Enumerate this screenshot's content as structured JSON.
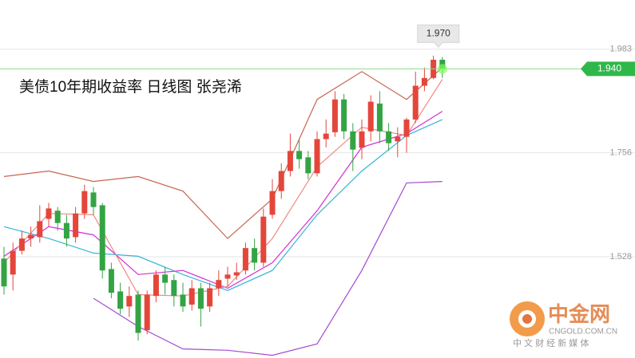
{
  "chart_data": {
    "type": "candlestick",
    "title": "美债10年期收益率  日线图  张尧浠",
    "ylim": [
      1.306,
      2.091
    ],
    "yticks": [
      1.528,
      1.756,
      1.983
    ],
    "grid": true,
    "up_color": "#e4463a",
    "down_color": "#33a444",
    "candles": {
      "open": [
        1.524,
        1.489,
        1.541,
        1.568,
        1.571,
        1.611,
        1.629,
        1.602,
        1.571,
        1.623,
        1.669,
        1.641,
        1.501,
        1.452,
        1.419,
        1.445,
        1.367,
        1.442,
        1.489,
        1.477,
        1.445,
        1.423,
        1.459,
        1.419,
        1.459,
        1.48,
        1.487,
        1.498,
        1.547,
        1.515,
        1.62,
        1.672,
        1.716,
        1.76,
        1.746,
        1.711,
        1.786,
        1.801,
        1.873,
        1.803,
        1.767,
        1.803,
        1.864,
        1.803,
        1.781,
        1.791,
        1.829,
        1.903,
        1.92,
        1.96
      ],
      "high": [
        1.55,
        1.559,
        1.585,
        1.594,
        1.641,
        1.646,
        1.637,
        1.62,
        1.637,
        1.686,
        1.681,
        1.646,
        1.515,
        1.471,
        1.463,
        1.454,
        1.454,
        1.498,
        1.506,
        1.489,
        1.471,
        1.477,
        1.471,
        1.471,
        1.498,
        1.506,
        1.515,
        1.559,
        1.568,
        1.634,
        1.698,
        1.733,
        1.798,
        1.786,
        1.76,
        1.803,
        1.829,
        1.891,
        1.885,
        1.821,
        1.829,
        1.882,
        1.891,
        1.821,
        1.812,
        1.833,
        1.934,
        1.943,
        1.969,
        1.966
      ],
      "low": [
        1.445,
        1.454,
        1.533,
        1.55,
        1.559,
        1.594,
        1.585,
        1.55,
        1.559,
        1.611,
        1.62,
        1.48,
        1.437,
        1.402,
        1.396,
        1.344,
        1.358,
        1.428,
        1.445,
        1.419,
        1.407,
        1.41,
        1.375,
        1.407,
        1.442,
        1.463,
        1.477,
        1.489,
        1.498,
        1.506,
        1.611,
        1.655,
        1.704,
        1.721,
        1.698,
        1.704,
        1.768,
        1.791,
        1.786,
        1.716,
        1.742,
        1.781,
        1.777,
        1.76,
        1.746,
        1.756,
        1.821,
        1.891,
        1.917,
        1.92
      ],
      "close": [
        1.463,
        1.541,
        1.568,
        1.576,
        1.606,
        1.634,
        1.602,
        1.568,
        1.623,
        1.672,
        1.637,
        1.498,
        1.449,
        1.414,
        1.442,
        1.361,
        1.445,
        1.489,
        1.471,
        1.442,
        1.419,
        1.459,
        1.414,
        1.459,
        1.477,
        1.489,
        1.494,
        1.547,
        1.515,
        1.616,
        1.672,
        1.716,
        1.76,
        1.742,
        1.711,
        1.786,
        1.798,
        1.873,
        1.803,
        1.763,
        1.803,
        1.868,
        1.803,
        1.777,
        1.791,
        1.829,
        1.903,
        1.92,
        1.96,
        1.94
      ]
    },
    "lines": [
      {
        "color": "#c8644e",
        "x": [
          0,
          5,
          10,
          15,
          20,
          25,
          30,
          35,
          40,
          45,
          49
        ],
        "values": [
          1.704,
          1.716,
          1.693,
          1.704,
          1.672,
          1.568,
          1.655,
          1.873,
          1.934,
          1.873,
          1.943
        ]
      },
      {
        "color": "#a34bd0",
        "x": [
          10,
          15,
          20,
          25,
          30,
          35,
          40,
          45,
          49
        ],
        "values": [
          1.437,
          1.375,
          1.326,
          1.323,
          1.312,
          1.337,
          1.498,
          1.69,
          1.693
        ]
      },
      {
        "color": "#36b4d8",
        "x": [
          0,
          5,
          10,
          15,
          20,
          25,
          30,
          35,
          40,
          45,
          49
        ],
        "values": [
          1.594,
          1.568,
          1.536,
          1.529,
          1.489,
          1.454,
          1.498,
          1.62,
          1.716,
          1.794,
          1.829
        ]
      },
      {
        "color": "#d62ad6",
        "x": [
          0,
          5,
          10,
          15,
          20,
          25,
          30,
          35,
          40,
          45,
          49
        ],
        "values": [
          1.529,
          1.594,
          1.576,
          1.489,
          1.498,
          1.459,
          1.515,
          1.629,
          1.768,
          1.798,
          1.847
        ]
      },
      {
        "color": "#f08a84",
        "x": [
          0,
          5,
          10,
          15,
          20,
          25,
          30,
          35,
          40,
          45,
          49
        ],
        "values": [
          1.515,
          1.623,
          1.62,
          1.445,
          1.442,
          1.463,
          1.568,
          1.725,
          1.812,
          1.794,
          1.917
        ]
      }
    ],
    "last_price": {
      "value": 1.94,
      "label": "1.940"
    },
    "tooltip": {
      "value": 1.97,
      "label": "1.970"
    },
    "watermark": {
      "brand": "中金网",
      "site": "CNGOLD.COM.CN",
      "slogan": "中 文 财 经 新 媒 体"
    }
  }
}
